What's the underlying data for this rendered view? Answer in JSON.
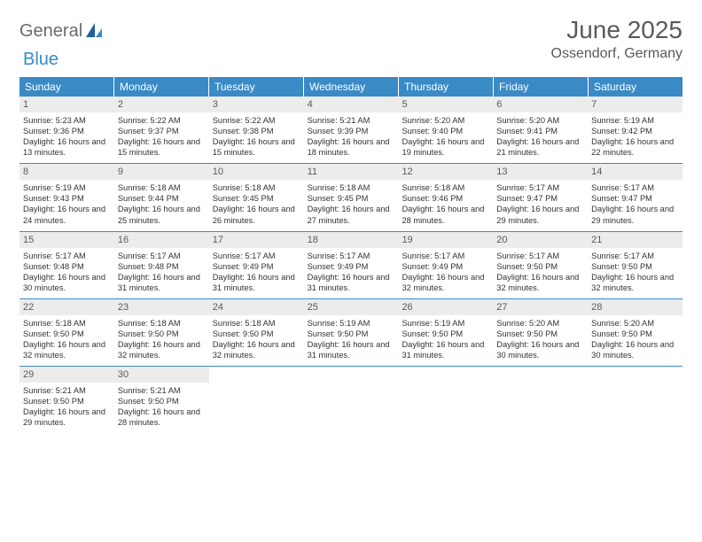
{
  "logo": {
    "text1": "General",
    "text2": "Blue"
  },
  "title": "June 2025",
  "location": "Ossendorf, Germany",
  "colors": {
    "header_bg": "#3a8ac6",
    "header_text": "#ffffff",
    "daynum_bg": "#ececec",
    "text": "#333333",
    "title_text": "#5a5a5a",
    "row_border": "#3a8ac6",
    "logo_gray": "#6b6b6b",
    "logo_blue": "#3a8ac6",
    "page_bg": "#ffffff"
  },
  "weekdays": [
    "Sunday",
    "Monday",
    "Tuesday",
    "Wednesday",
    "Thursday",
    "Friday",
    "Saturday"
  ],
  "days": [
    {
      "n": 1,
      "sr": "5:23 AM",
      "ss": "9:36 PM",
      "dl": "16 hours and 13 minutes."
    },
    {
      "n": 2,
      "sr": "5:22 AM",
      "ss": "9:37 PM",
      "dl": "16 hours and 15 minutes."
    },
    {
      "n": 3,
      "sr": "5:22 AM",
      "ss": "9:38 PM",
      "dl": "16 hours and 15 minutes."
    },
    {
      "n": 4,
      "sr": "5:21 AM",
      "ss": "9:39 PM",
      "dl": "16 hours and 18 minutes."
    },
    {
      "n": 5,
      "sr": "5:20 AM",
      "ss": "9:40 PM",
      "dl": "16 hours and 19 minutes."
    },
    {
      "n": 6,
      "sr": "5:20 AM",
      "ss": "9:41 PM",
      "dl": "16 hours and 21 minutes."
    },
    {
      "n": 7,
      "sr": "5:19 AM",
      "ss": "9:42 PM",
      "dl": "16 hours and 22 minutes."
    },
    {
      "n": 8,
      "sr": "5:19 AM",
      "ss": "9:43 PM",
      "dl": "16 hours and 24 minutes."
    },
    {
      "n": 9,
      "sr": "5:18 AM",
      "ss": "9:44 PM",
      "dl": "16 hours and 25 minutes."
    },
    {
      "n": 10,
      "sr": "5:18 AM",
      "ss": "9:45 PM",
      "dl": "16 hours and 26 minutes."
    },
    {
      "n": 11,
      "sr": "5:18 AM",
      "ss": "9:45 PM",
      "dl": "16 hours and 27 minutes."
    },
    {
      "n": 12,
      "sr": "5:18 AM",
      "ss": "9:46 PM",
      "dl": "16 hours and 28 minutes."
    },
    {
      "n": 13,
      "sr": "5:17 AM",
      "ss": "9:47 PM",
      "dl": "16 hours and 29 minutes."
    },
    {
      "n": 14,
      "sr": "5:17 AM",
      "ss": "9:47 PM",
      "dl": "16 hours and 29 minutes."
    },
    {
      "n": 15,
      "sr": "5:17 AM",
      "ss": "9:48 PM",
      "dl": "16 hours and 30 minutes."
    },
    {
      "n": 16,
      "sr": "5:17 AM",
      "ss": "9:48 PM",
      "dl": "16 hours and 31 minutes."
    },
    {
      "n": 17,
      "sr": "5:17 AM",
      "ss": "9:49 PM",
      "dl": "16 hours and 31 minutes."
    },
    {
      "n": 18,
      "sr": "5:17 AM",
      "ss": "9:49 PM",
      "dl": "16 hours and 31 minutes."
    },
    {
      "n": 19,
      "sr": "5:17 AM",
      "ss": "9:49 PM",
      "dl": "16 hours and 32 minutes."
    },
    {
      "n": 20,
      "sr": "5:17 AM",
      "ss": "9:50 PM",
      "dl": "16 hours and 32 minutes."
    },
    {
      "n": 21,
      "sr": "5:17 AM",
      "ss": "9:50 PM",
      "dl": "16 hours and 32 minutes."
    },
    {
      "n": 22,
      "sr": "5:18 AM",
      "ss": "9:50 PM",
      "dl": "16 hours and 32 minutes."
    },
    {
      "n": 23,
      "sr": "5:18 AM",
      "ss": "9:50 PM",
      "dl": "16 hours and 32 minutes."
    },
    {
      "n": 24,
      "sr": "5:18 AM",
      "ss": "9:50 PM",
      "dl": "16 hours and 32 minutes."
    },
    {
      "n": 25,
      "sr": "5:19 AM",
      "ss": "9:50 PM",
      "dl": "16 hours and 31 minutes."
    },
    {
      "n": 26,
      "sr": "5:19 AM",
      "ss": "9:50 PM",
      "dl": "16 hours and 31 minutes."
    },
    {
      "n": 27,
      "sr": "5:20 AM",
      "ss": "9:50 PM",
      "dl": "16 hours and 30 minutes."
    },
    {
      "n": 28,
      "sr": "5:20 AM",
      "ss": "9:50 PM",
      "dl": "16 hours and 30 minutes."
    },
    {
      "n": 29,
      "sr": "5:21 AM",
      "ss": "9:50 PM",
      "dl": "16 hours and 29 minutes."
    },
    {
      "n": 30,
      "sr": "5:21 AM",
      "ss": "9:50 PM",
      "dl": "16 hours and 28 minutes."
    }
  ],
  "labels": {
    "sunrise": "Sunrise:",
    "sunset": "Sunset:",
    "daylight": "Daylight:"
  },
  "layout": {
    "first_day_col": 0,
    "total_cells": 35
  }
}
